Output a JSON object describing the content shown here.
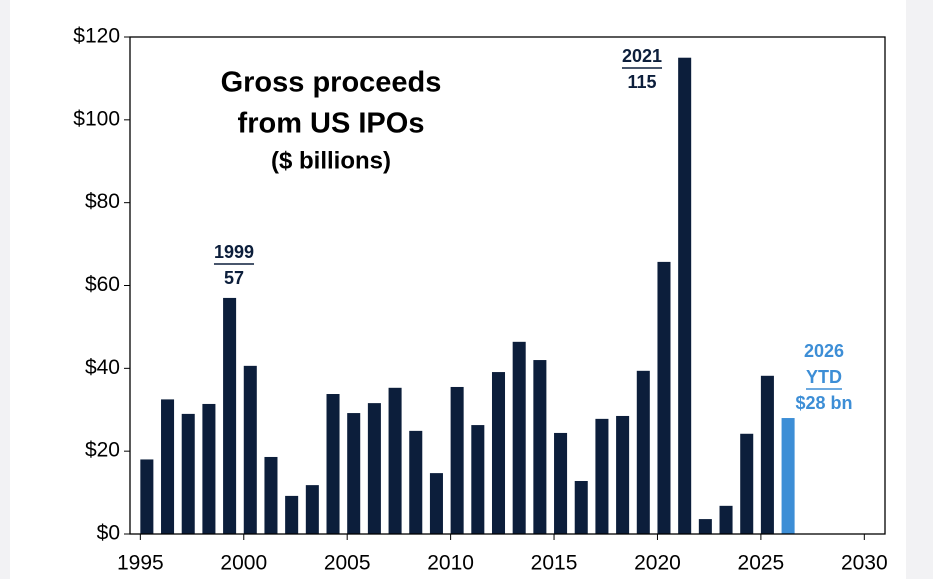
{
  "chart_data": {
    "type": "bar",
    "title": [
      "Gross proceeds",
      "from US IPOs"
    ],
    "subtitle": "($ billions)",
    "x": [
      1995,
      1996,
      1997,
      1998,
      1999,
      2000,
      2001,
      2002,
      2003,
      2004,
      2005,
      2006,
      2007,
      2008,
      2009,
      2010,
      2011,
      2012,
      2013,
      2014,
      2015,
      2016,
      2017,
      2018,
      2019,
      2020,
      2021,
      2022,
      2023,
      2024,
      2025,
      2026
    ],
    "values": [
      18,
      32.5,
      29,
      31.4,
      57,
      40.6,
      18.6,
      9.2,
      11.8,
      33.8,
      29.2,
      31.6,
      35.3,
      24.9,
      14.7,
      35.5,
      26.3,
      39.1,
      46.4,
      42,
      24.4,
      12.8,
      27.8,
      28.5,
      39.4,
      65.7,
      115,
      3.6,
      6.8,
      24.2,
      38.2,
      28
    ],
    "colors": [
      "#0c1e3b",
      "#0c1e3b",
      "#0c1e3b",
      "#0c1e3b",
      "#0c1e3b",
      "#0c1e3b",
      "#0c1e3b",
      "#0c1e3b",
      "#0c1e3b",
      "#0c1e3b",
      "#0c1e3b",
      "#0c1e3b",
      "#0c1e3b",
      "#0c1e3b",
      "#0c1e3b",
      "#0c1e3b",
      "#0c1e3b",
      "#0c1e3b",
      "#0c1e3b",
      "#0c1e3b",
      "#0c1e3b",
      "#0c1e3b",
      "#0c1e3b",
      "#0c1e3b",
      "#0c1e3b",
      "#0c1e3b",
      "#0c1e3b",
      "#0c1e3b",
      "#0c1e3b",
      "#0c1e3b",
      "#0c1e3b",
      "#3d8ed6"
    ],
    "xlim": [
      1994.5,
      2031
    ],
    "xticks": [
      1995,
      2000,
      2005,
      2010,
      2015,
      2020,
      2025,
      2030
    ],
    "ylim": [
      0,
      120
    ],
    "yticks": [
      {
        "value": 0,
        "label": "$0"
      },
      {
        "value": 20,
        "label": "$20"
      },
      {
        "value": 40,
        "label": "$40"
      },
      {
        "value": 60,
        "label": "$60"
      },
      {
        "value": 80,
        "label": "$80"
      },
      {
        "value": 100,
        "label": "$100"
      },
      {
        "value": 120,
        "label": "$120"
      }
    ],
    "annotations": [
      [
        "1999",
        "57"
      ],
      [
        "2021",
        "115"
      ],
      [
        "2026",
        "YTD",
        "$28 bn"
      ]
    ]
  }
}
